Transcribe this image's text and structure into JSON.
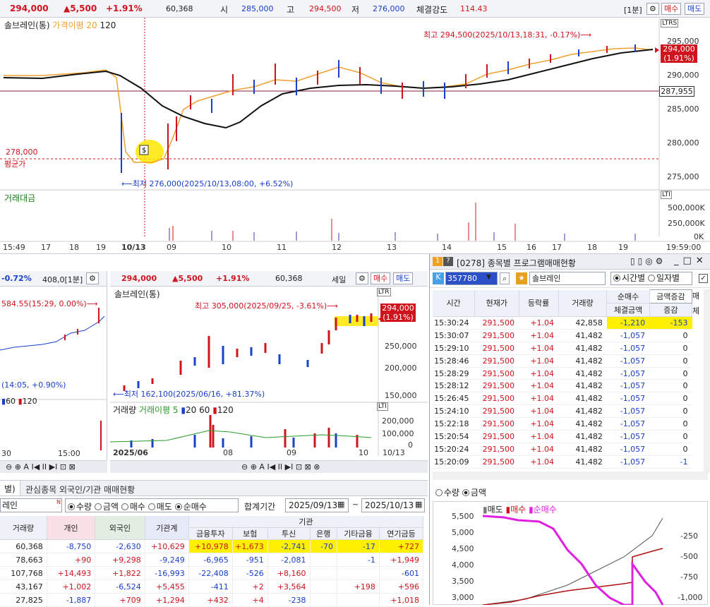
{
  "top": {
    "price": "294,000",
    "change": "▲5,500",
    "pct": "+1.91%",
    "volume": "60,368",
    "open_label": "시",
    "open": "285,000",
    "high_label": "고",
    "high": "294,500",
    "low_label": "저",
    "low": "276,000",
    "strength_label": "체결강도",
    "strength": "114.43",
    "interval": "[1분]",
    "sell": "매수",
    "buy": "매도"
  },
  "main_chart": {
    "legend_name": "솔브레인(통)",
    "legend_ma": "가격이평 20",
    "legend_120": "120",
    "high_note": "최고 294,500(2025/10/13,18:31, -0.17%)⟶",
    "low_note": "⟵최저 276,000(2025/10/13,08:00, +6.52%)",
    "avg_price": "278,000",
    "avg_label": "평균가",
    "price_tag": "294,000",
    "price_tag_pct": "(1.91%)",
    "line_tag": "287,955",
    "y_ticks": [
      "295,000",
      "290,000",
      "285,000",
      "280,000",
      "275,000"
    ],
    "vol_label": "거래대금",
    "vol_ticks": [
      "500,000K",
      "250,000K",
      "0K"
    ],
    "x_ticks": [
      "15:49",
      "17",
      "18",
      "19",
      "10/13",
      "09",
      "10",
      "11",
      "12",
      "13",
      "14",
      "15",
      "16",
      "17",
      "18",
      "19",
      "19:59:00"
    ]
  },
  "left_panel": {
    "pct": "-0.72%",
    "interval": "408,0[1분]",
    "note_top": "584.55(15:29, 0.00%)⟶",
    "note_low": "(14:05, +0.90%)",
    "ma60": "60",
    "ma120": "120",
    "x_ticks": [
      "30",
      "15:00"
    ]
  },
  "mid_panel": {
    "price": "294,000",
    "change": "▲5,500",
    "pct": "+1.91%",
    "volume": "60,368",
    "period": "세일",
    "sell": "매수",
    "buy": "매도",
    "name": "솔브레인(통)",
    "high_note": "최고 305,000(2025/09/25, -3.61%)⟶",
    "low_note": "⟵최저 162,100(2025/06/16, +81.37%)",
    "price_tag": "294,000",
    "price_tag_pct": "(1.91%)",
    "y_ticks": [
      "250,000",
      "200,000",
      "150,000"
    ],
    "vol_legend": "거래량",
    "vol_ma": "거래이평 5",
    "vol_20": "20",
    "vol_60": "60",
    "vol_120": "120",
    "vol_ticks": [
      "200,000",
      "100,000",
      "0"
    ],
    "x_ticks": [
      "2025/06",
      "08",
      "09",
      "10",
      "10/13"
    ]
  },
  "program": {
    "title": "[0278] 종목별 프로그램매매현황",
    "code": "357780",
    "stock": "솔브레인",
    "opt_time": "시간별",
    "opt_day": "일자별",
    "h_time": "시간",
    "h_price": "현재가",
    "h_rate": "등락률",
    "h_vol": "거래량",
    "h_net": "순매수",
    "h_dropdown": "금액증감",
    "h_amt": "체결금액",
    "h_chg": "증감",
    "h_extra": "매",
    "h_extra2": "체",
    "rows": [
      [
        "15:30:24",
        "291,500",
        "+1.04",
        "42,858",
        "-1,210",
        "-153"
      ],
      [
        "15:30:07",
        "291,500",
        "+1.04",
        "41,482",
        "-1,057",
        "0"
      ],
      [
        "15:29:10",
        "291,500",
        "+1.04",
        "41,482",
        "-1,057",
        "0"
      ],
      [
        "15:28:46",
        "291,500",
        "+1.04",
        "41,482",
        "-1,057",
        "0"
      ],
      [
        "15:28:29",
        "291,500",
        "+1.04",
        "41,482",
        "-1,057",
        "0"
      ],
      [
        "15:28:12",
        "291,500",
        "+1.04",
        "41,482",
        "-1,057",
        "0"
      ],
      [
        "15:26:45",
        "291,500",
        "+1.04",
        "41,482",
        "-1,057",
        "0"
      ],
      [
        "15:24:10",
        "291,500",
        "+1.04",
        "41,482",
        "-1,057",
        "0"
      ],
      [
        "15:22:18",
        "291,500",
        "+1.04",
        "41,482",
        "-1,057",
        "0"
      ],
      [
        "15:20:54",
        "291,500",
        "+1.04",
        "41,482",
        "-1,057",
        "0"
      ],
      [
        "15:20:24",
        "291,500",
        "+1.04",
        "41,482",
        "-1,057",
        "0"
      ],
      [
        "15:20:09",
        "291,500",
        "+1.04",
        "41,482",
        "-1,057",
        "-1"
      ]
    ],
    "opt_qty": "수량",
    "opt_amt": "금액",
    "chart_legend_sell": "매도",
    "chart_legend_buy": "매수",
    "chart_legend_net": "순매수",
    "y_left": [
      "5,500",
      "5,000",
      "4,500",
      "4,000",
      "3,500",
      "3,000"
    ],
    "y_right": [
      "-250",
      "-500",
      "-750",
      "-1,000"
    ]
  },
  "investor": {
    "tab_left": "별)",
    "tab_title": "관심종목 외국인/기관 매매현황",
    "stock": "레인",
    "opt_qty": "수량",
    "opt_amt": "금액",
    "opt_sell": "매수",
    "opt_buy": "매도",
    "opt_net": "순매수",
    "period_label": "합계기간",
    "date_from": "2025/09/13",
    "date_to": "2025/10/13",
    "group_inst": "기관",
    "headers": [
      "거래량",
      "개인",
      "외국인",
      "기관계",
      "금융투자",
      "보험",
      "투신",
      "은행",
      "기타금융",
      "연기금등"
    ],
    "rows": [
      [
        "60,368",
        "-8,750",
        "-2,630",
        "+10,629",
        "+10,978",
        "+1,673",
        "-2,741",
        "-70",
        "-17",
        "+727"
      ],
      [
        "78,663",
        "+90",
        "+9,298",
        "-9,249",
        "-6,965",
        "-951",
        "-2,081",
        "",
        "-1",
        "+1,949"
      ],
      [
        "107,768",
        "+14,493",
        "+1,822",
        "-16,993",
        "-22,408",
        "-526",
        "+8,160",
        "",
        "",
        "-601"
      ],
      [
        "43,167",
        "+1,002",
        "-6,524",
        "+5,455",
        "-411",
        "+2",
        "+3,564",
        "",
        "+198",
        "+596"
      ],
      [
        "27,825",
        "-1,887",
        "+709",
        "+1,294",
        "+432",
        "+4",
        "-238",
        "",
        "",
        "+1,018"
      ]
    ]
  }
}
